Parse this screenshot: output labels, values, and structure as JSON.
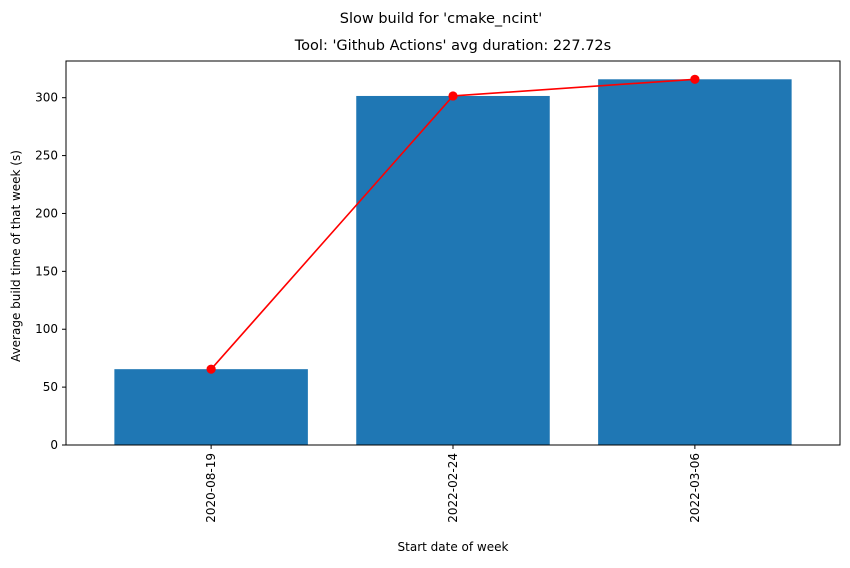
{
  "chart_data": {
    "type": "bar",
    "suptitle": "Slow build for 'cmake_ncint'",
    "title": "Tool: 'Github Actions' avg duration: 227.72s",
    "xlabel": "Start date of week",
    "ylabel": "Average build time of that week (s)",
    "categories": [
      "2020-08-19",
      "2022-02-24",
      "2022-03-06"
    ],
    "series": [
      {
        "type": "bar",
        "values": [
          65.5,
          301.5,
          315.9
        ],
        "color": "#1f77b4"
      },
      {
        "type": "line",
        "values": [
          65.5,
          301.5,
          315.9
        ],
        "color": "#ff0000",
        "marker": "circle"
      }
    ],
    "ylim": [
      0,
      331.7
    ],
    "yticks": [
      0,
      50,
      100,
      150,
      200,
      250,
      300
    ],
    "x_tick_rotation": "vertical",
    "grid": false,
    "legend": "none"
  }
}
